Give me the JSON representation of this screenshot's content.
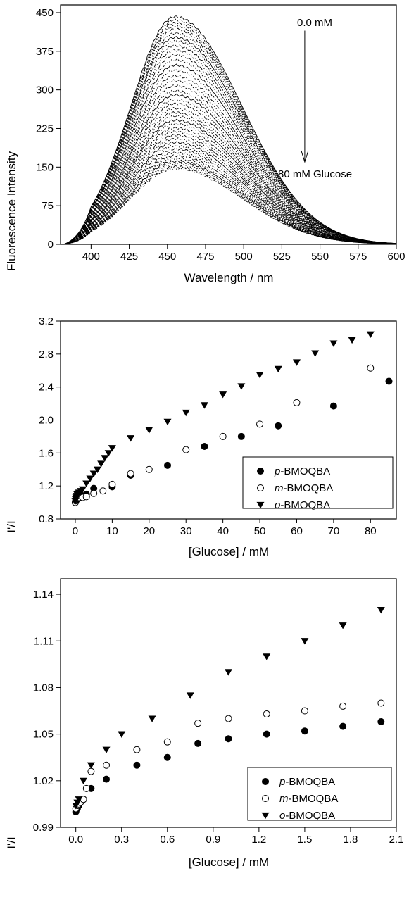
{
  "chart_data": [
    {
      "type": "line",
      "xlabel": "Wavelength / nm",
      "ylabel": "Fluorescence Intensity",
      "xlim": [
        380,
        600
      ],
      "ylim": [
        0,
        465
      ],
      "xticks": [
        400,
        425,
        450,
        475,
        500,
        525,
        550,
        575,
        600
      ],
      "yticks": [
        0,
        75,
        150,
        225,
        300,
        375,
        450
      ],
      "grid": false,
      "annotations": [
        {
          "text": "0.0 mM"
        },
        {
          "text": "80 mM Glucose"
        }
      ],
      "arrow": {
        "from": [
          540,
          415
        ],
        "to": [
          540,
          160
        ]
      },
      "peak_x": 455,
      "peak_intensities": [
        442,
        436,
        430,
        424,
        418,
        410,
        402,
        395,
        386,
        377,
        368,
        358,
        348,
        338,
        327,
        318,
        308,
        298,
        290,
        281,
        273,
        264,
        256,
        249,
        241,
        234,
        226,
        219,
        212,
        205,
        198,
        191,
        185,
        178,
        172,
        166,
        161,
        156,
        151,
        147
      ]
    },
    {
      "type": "scatter",
      "xlabel": "[Glucose] / mM",
      "ylabel": "I'/I",
      "xlim": [
        -4,
        87
      ],
      "ylim": [
        0.8,
        3.2
      ],
      "xticks": [
        0,
        10,
        20,
        30,
        40,
        50,
        60,
        70,
        80
      ],
      "yticks": [
        0.8,
        1.2,
        1.6,
        2.0,
        2.4,
        2.8,
        3.2
      ],
      "yticklabels": [
        "0.8",
        "1.2",
        "1.6",
        "2.0",
        "2.4",
        "2.8",
        "3.2"
      ],
      "grid": false,
      "legend_position": "bottom-right",
      "series": [
        {
          "name": "p-BMOQBA",
          "marker": "filled-circle",
          "x": [
            0,
            0.1,
            0.2,
            0.3,
            0.5,
            0.8,
            1,
            1.5,
            2,
            3,
            5,
            10,
            15,
            25,
            35,
            45,
            55,
            70,
            85
          ],
          "y": [
            1.0,
            1.01,
            1.02,
            1.03,
            1.04,
            1.05,
            1.06,
            1.07,
            1.08,
            1.1,
            1.17,
            1.19,
            1.33,
            1.45,
            1.68,
            1.8,
            1.93,
            2.17,
            2.47
          ]
        },
        {
          "name": "m-BMOQBA",
          "marker": "open-circle",
          "x": [
            0,
            0.1,
            0.2,
            0.3,
            0.5,
            0.8,
            1,
            2,
            3,
            5,
            7.5,
            10,
            15,
            20,
            30,
            40,
            50,
            60,
            80
          ],
          "y": [
            1.0,
            1.02,
            1.03,
            1.04,
            1.05,
            1.06,
            1.06,
            1.06,
            1.07,
            1.11,
            1.14,
            1.22,
            1.35,
            1.4,
            1.64,
            1.8,
            1.95,
            2.21,
            2.63
          ]
        },
        {
          "name": "o-BMOQBA",
          "marker": "filled-triangle-down",
          "x": [
            0,
            0.1,
            0.2,
            0.3,
            0.5,
            0.8,
            1,
            1.5,
            2,
            3,
            4,
            5,
            6,
            7,
            8,
            9,
            10,
            15,
            20,
            25,
            30,
            35,
            40,
            45,
            50,
            55,
            60,
            65,
            70,
            75,
            80
          ],
          "y": [
            1.02,
            1.04,
            1.06,
            1.08,
            1.1,
            1.11,
            1.12,
            1.14,
            1.16,
            1.23,
            1.29,
            1.35,
            1.4,
            1.47,
            1.54,
            1.6,
            1.66,
            1.78,
            1.88,
            1.98,
            2.09,
            2.18,
            2.31,
            2.41,
            2.55,
            2.62,
            2.7,
            2.81,
            2.93,
            2.97,
            3.04
          ]
        }
      ]
    },
    {
      "type": "scatter",
      "xlabel": "[Glucose] / mM",
      "ylabel": "I'/I",
      "xlim": [
        -0.1,
        2.1
      ],
      "ylim": [
        0.99,
        1.15
      ],
      "xticks": [
        0.0,
        0.3,
        0.6,
        0.9,
        1.2,
        1.5,
        1.8,
        2.1
      ],
      "xticklabels": [
        "0.0",
        "0.3",
        "0.6",
        "0.9",
        "1.2",
        "1.5",
        "1.8",
        "2.1"
      ],
      "yticks": [
        0.99,
        1.02,
        1.05,
        1.08,
        1.11,
        1.14
      ],
      "yticklabels": [
        "0.99",
        "1.02",
        "1.05",
        "1.08",
        "1.11",
        "1.14"
      ],
      "grid": false,
      "legend_position": "bottom-right",
      "series": [
        {
          "name": "p-BMOQBA",
          "marker": "filled-circle",
          "x": [
            0,
            0.01,
            0.02,
            0.03,
            0.05,
            0.1,
            0.2,
            0.4,
            0.6,
            0.8,
            1.0,
            1.25,
            1.5,
            1.75,
            2.0
          ],
          "y": [
            1.0,
            1.002,
            1.004,
            1.006,
            1.008,
            1.015,
            1.021,
            1.03,
            1.035,
            1.044,
            1.047,
            1.05,
            1.052,
            1.055,
            1.058
          ]
        },
        {
          "name": "m-BMOQBA",
          "marker": "open-circle",
          "x": [
            0,
            0.01,
            0.02,
            0.03,
            0.05,
            0.07,
            0.1,
            0.2,
            0.4,
            0.6,
            0.8,
            1.0,
            1.25,
            1.5,
            1.75,
            2.0
          ],
          "y": [
            1.002,
            1.004,
            1.005,
            1.006,
            1.008,
            1.015,
            1.026,
            1.03,
            1.04,
            1.045,
            1.057,
            1.06,
            1.063,
            1.065,
            1.068,
            1.07
          ]
        },
        {
          "name": "o-BMOQBA",
          "marker": "filled-triangle-down",
          "x": [
            0,
            0.01,
            0.02,
            0.05,
            0.1,
            0.2,
            0.3,
            0.5,
            0.75,
            1.0,
            1.25,
            1.5,
            1.75,
            2.0
          ],
          "y": [
            1.004,
            1.006,
            1.008,
            1.02,
            1.03,
            1.04,
            1.05,
            1.06,
            1.075,
            1.09,
            1.1,
            1.11,
            1.12,
            1.13
          ]
        }
      ]
    }
  ]
}
